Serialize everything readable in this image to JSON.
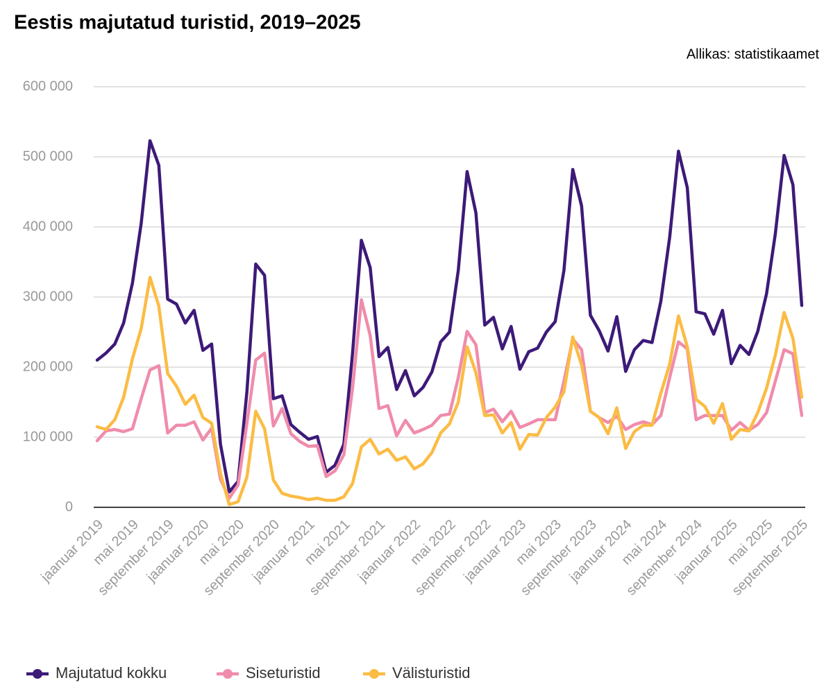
{
  "chart_data": {
    "type": "line",
    "title": "Eestis majutatud turistid, 2019–2025",
    "source": "Allikas: statistikaamet",
    "categories": [
      "jaanuar 2019",
      null,
      null,
      null,
      "mai 2019",
      null,
      null,
      null,
      "september 2019",
      null,
      null,
      null,
      "jaanuar 2020",
      null,
      null,
      null,
      "mai 2020",
      null,
      null,
      null,
      "september 2020",
      null,
      null,
      null,
      "jaanuar 2021",
      null,
      null,
      null,
      "mai 2021",
      null,
      null,
      null,
      "september 2021",
      null,
      null,
      null,
      "jaanuar 2022",
      null,
      null,
      null,
      "mai 2022",
      null,
      null,
      null,
      "september 2022",
      null,
      null,
      null,
      "jaanuar 2023",
      null,
      null,
      null,
      "mai 2023",
      null,
      null,
      null,
      "september 2023",
      null,
      null,
      null,
      "jaanuar 2024",
      null,
      null,
      null,
      "mai 2024",
      null,
      null,
      null,
      "september 2024",
      null,
      null,
      null,
      "jaanuar 2025",
      null,
      null,
      null,
      "mai 2025",
      null,
      null,
      null,
      "september 2025"
    ],
    "series": [
      {
        "name": "Majutatud kokku",
        "color": "#3d1a78",
        "values": [
          210000,
          220000,
          233000,
          263000,
          320000,
          405000,
          523000,
          488000,
          297000,
          290000,
          263000,
          281000,
          224000,
          233000,
          90000,
          22000,
          37000,
          165000,
          347000,
          331000,
          155000,
          159000,
          118000,
          107000,
          97000,
          101000,
          50000,
          60000,
          90000,
          220000,
          381000,
          342000,
          215000,
          228000,
          168000,
          195000,
          159000,
          171000,
          193000,
          236000,
          250000,
          338000,
          479000,
          420000,
          260000,
          271000,
          226000,
          258000,
          197000,
          222000,
          227000,
          250000,
          265000,
          338000,
          482000,
          430000,
          274000,
          252000,
          223000,
          272000,
          194000,
          225000,
          238000,
          235000,
          294000,
          385000,
          508000,
          456000,
          279000,
          276000,
          247000,
          281000,
          205000,
          231000,
          218000,
          251000,
          305000,
          390000,
          502000,
          460000,
          288000
        ]
      },
      {
        "name": "Siseturistid",
        "color": "#f08cab",
        "values": [
          95000,
          109000,
          111000,
          108000,
          112000,
          155000,
          196000,
          202000,
          106000,
          117000,
          117000,
          122000,
          96000,
          113000,
          40000,
          13000,
          32000,
          120000,
          210000,
          220000,
          116000,
          141000,
          105000,
          94000,
          87000,
          88000,
          44000,
          52000,
          75000,
          170000,
          296000,
          245000,
          141000,
          145000,
          102000,
          124000,
          106000,
          111000,
          117000,
          131000,
          133000,
          185000,
          251000,
          232000,
          135000,
          140000,
          122000,
          137000,
          114000,
          119000,
          125000,
          125000,
          125000,
          180000,
          240000,
          225000,
          137000,
          128000,
          121000,
          130000,
          111000,
          118000,
          122000,
          118000,
          131000,
          185000,
          236000,
          226000,
          125000,
          131000,
          131000,
          131000,
          110000,
          121000,
          110000,
          118000,
          135000,
          180000,
          225000,
          219000,
          131000
        ]
      },
      {
        "name": "Välisturistid",
        "color": "#fbbc44",
        "values": [
          115000,
          111000,
          125000,
          157000,
          212000,
          255000,
          328000,
          287000,
          191000,
          173000,
          147000,
          160000,
          128000,
          120000,
          48000,
          4000,
          8000,
          43000,
          137000,
          112000,
          39000,
          20000,
          16000,
          14000,
          11000,
          13000,
          10000,
          10000,
          15000,
          34000,
          86000,
          97000,
          76000,
          83000,
          67000,
          72000,
          55000,
          62000,
          78000,
          106000,
          119000,
          150000,
          229000,
          192000,
          131000,
          132000,
          106000,
          121000,
          83000,
          104000,
          103000,
          128000,
          143000,
          165000,
          243000,
          203000,
          137000,
          128000,
          105000,
          142000,
          84000,
          108000,
          117000,
          117000,
          163000,
          204000,
          273000,
          229000,
          154000,
          144000,
          120000,
          148000,
          97000,
          111000,
          109000,
          135000,
          170000,
          217000,
          278000,
          241000,
          157000
        ]
      }
    ],
    "ylim": [
      0,
      600000
    ],
    "yticks": [
      {
        "value": 0,
        "label": "0"
      },
      {
        "value": 100000,
        "label": "100 000"
      },
      {
        "value": 200000,
        "label": "200 000"
      },
      {
        "value": 300000,
        "label": "300 000"
      },
      {
        "value": 400000,
        "label": "400 000"
      },
      {
        "value": 500000,
        "label": "500 000"
      },
      {
        "value": 600000,
        "label": "600 000"
      }
    ],
    "grid": true
  }
}
